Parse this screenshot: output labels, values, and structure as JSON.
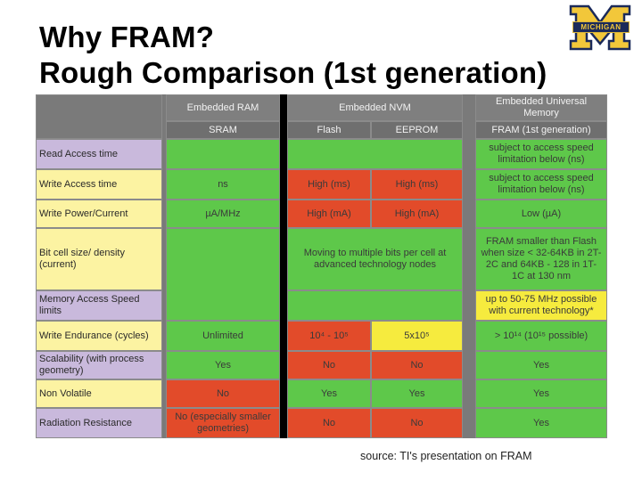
{
  "title": {
    "line1": "Why FRAM?",
    "line2": "Rough Comparison (1st generation)"
  },
  "logo": {
    "letter": "M",
    "band_text": "MICHIGAN",
    "colors": {
      "navy": "#1b2a5a",
      "maize": "#f2c73a"
    }
  },
  "table": {
    "group_headers": {
      "embedded_ram": "Embedded RAM",
      "embedded_nvm": "Embedded NVM",
      "embedded_universal": "Embedded Universal Memory"
    },
    "column_headers": {
      "sram": "SRAM",
      "flash": "Flash",
      "eeprom": "EEPROM",
      "fram": "FRAM (1st generation)"
    },
    "rows": [
      {
        "label": "Read Access time",
        "sram": "",
        "nvm": "",
        "fram": "subject to access speed limitation below (ns)"
      },
      {
        "label": "Write Access time",
        "sram": "ns",
        "flash": "High (ms)",
        "eeprom": "High (ms)",
        "fram": "subject to access speed limitation below (ns)"
      },
      {
        "label": "Write Power/Current",
        "sram": "µA/MHz",
        "flash": "High (mA)",
        "eeprom": "High (mA)",
        "fram": "Low (µA)"
      },
      {
        "label": "Bit cell size/ density (current)",
        "sram": "",
        "nvm": "Moving to multiple bits per cell at advanced technology nodes",
        "fram": "FRAM smaller than Flash when size < 32-64KB in 2T-2C and 64KB - 128 in 1T-1C at 130 nm"
      },
      {
        "label": "Memory Access Speed limits",
        "sram": "",
        "nvm": "",
        "fram": "up to 50-75 MHz possible with current technology*"
      },
      {
        "label": "Write Endurance (cycles)",
        "sram": "Unlimited",
        "flash": "10⁴ - 10⁵",
        "eeprom": "5x10⁵",
        "fram": "> 10¹⁴ (10¹⁵ possible)"
      },
      {
        "label": "Scalability (with process geometry)",
        "sram": "Yes",
        "flash": "No",
        "eeprom": "No",
        "fram": "Yes"
      },
      {
        "label": "Non Volatile",
        "sram": "No",
        "flash": "Yes",
        "eeprom": "Yes",
        "fram": "Yes"
      },
      {
        "label": "Radiation Resistance",
        "sram": "No (especially smaller geometries)",
        "flash": "No",
        "eeprom": "No",
        "fram": "Yes"
      }
    ],
    "colors": {
      "green": "#5ec84a",
      "red": "#e24b2a",
      "yellow": "#f6eb3e",
      "label_purple": "#c9b9dc",
      "label_yellow": "#fcf3a2",
      "header_gray": "#7f7f7f"
    }
  },
  "source": "source: TI's presentation on FRAM"
}
